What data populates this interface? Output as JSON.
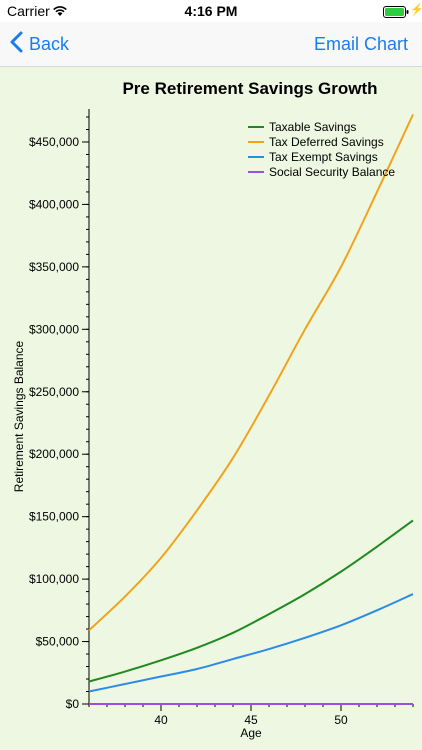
{
  "status_bar": {
    "carrier": "Carrier",
    "time": "4:16 PM"
  },
  "nav": {
    "back_label": "Back",
    "email_label": "Email Chart"
  },
  "colors": {
    "accent": "#1a7cf2",
    "chart_background": "#eef7e2",
    "taxable": "#1f8a1f",
    "tax_deferred": "#f0a31c",
    "tax_exempt": "#2b8be6",
    "social_security": "#9b4fe0"
  },
  "chart_data": {
    "type": "line",
    "title": "Pre Retirement Savings Growth",
    "xlabel": "Age",
    "ylabel": "Retirement Savings Balance",
    "xlim": [
      36,
      54
    ],
    "ylim": [
      0,
      470000
    ],
    "xticks": [
      40,
      45,
      50
    ],
    "yticks": [
      0,
      50000,
      100000,
      150000,
      200000,
      250000,
      300000,
      350000,
      400000,
      450000
    ],
    "ytick_labels": [
      "$0",
      "$50,000",
      "$100,000",
      "$150,000",
      "$200,000",
      "$250,000",
      "$300,000",
      "$350,000",
      "$400,000",
      "$450,000"
    ],
    "legend_position": "top-right",
    "grid": false,
    "x": [
      36,
      38,
      40,
      42,
      44,
      46,
      48,
      50,
      52,
      54
    ],
    "series": [
      {
        "name": "Taxable Savings",
        "color_key": "taxable",
        "values": [
          18000,
          26000,
          35000,
          45000,
          57000,
          72000,
          88000,
          106000,
          126000,
          147000
        ]
      },
      {
        "name": "Tax Deferred Savings",
        "color_key": "tax_deferred",
        "values": [
          59000,
          86000,
          117000,
          155000,
          197000,
          247000,
          300000,
          350000,
          410000,
          472000
        ]
      },
      {
        "name": "Tax Exempt Savings",
        "color_key": "tax_exempt",
        "values": [
          10000,
          16000,
          22000,
          28000,
          36000,
          44000,
          53000,
          63000,
          75000,
          88000
        ]
      },
      {
        "name": "Social Security Balance",
        "color_key": "social_security",
        "values": [
          0,
          0,
          0,
          0,
          0,
          0,
          0,
          0,
          0,
          0
        ]
      }
    ]
  }
}
